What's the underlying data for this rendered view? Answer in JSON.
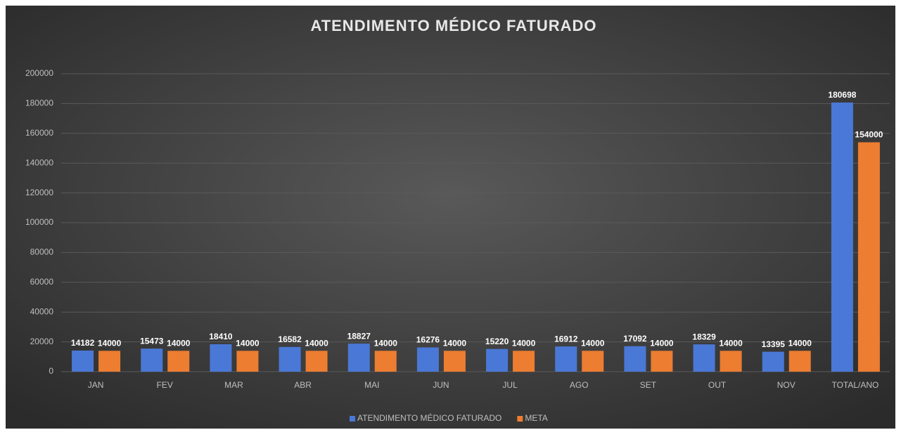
{
  "chart_data": {
    "type": "bar",
    "title": "ATENDIMENTO MÉDICO FATURADO",
    "categories": [
      "JAN",
      "FEV",
      "MAR",
      "ABR",
      "MAI",
      "JUN",
      "JUL",
      "AGO",
      "SET",
      "OUT",
      "NOV",
      "TOTAL/ANO"
    ],
    "series": [
      {
        "name": "ATENDIMENTO MÉDICO FATURADO",
        "color": "#4a78d6",
        "values": [
          14182,
          15473,
          18410,
          16582,
          18827,
          16276,
          15220,
          16912,
          17092,
          18329,
          13395,
          180698
        ]
      },
      {
        "name": "META",
        "color": "#ed7d31",
        "values": [
          14000,
          14000,
          14000,
          14000,
          14000,
          14000,
          14000,
          14000,
          14000,
          14000,
          14000,
          154000
        ]
      }
    ],
    "ylim": [
      0,
      200000
    ],
    "yticks": [
      0,
      20000,
      40000,
      60000,
      80000,
      100000,
      120000,
      140000,
      160000,
      180000,
      200000
    ],
    "grid": true,
    "legend": "bottom"
  }
}
